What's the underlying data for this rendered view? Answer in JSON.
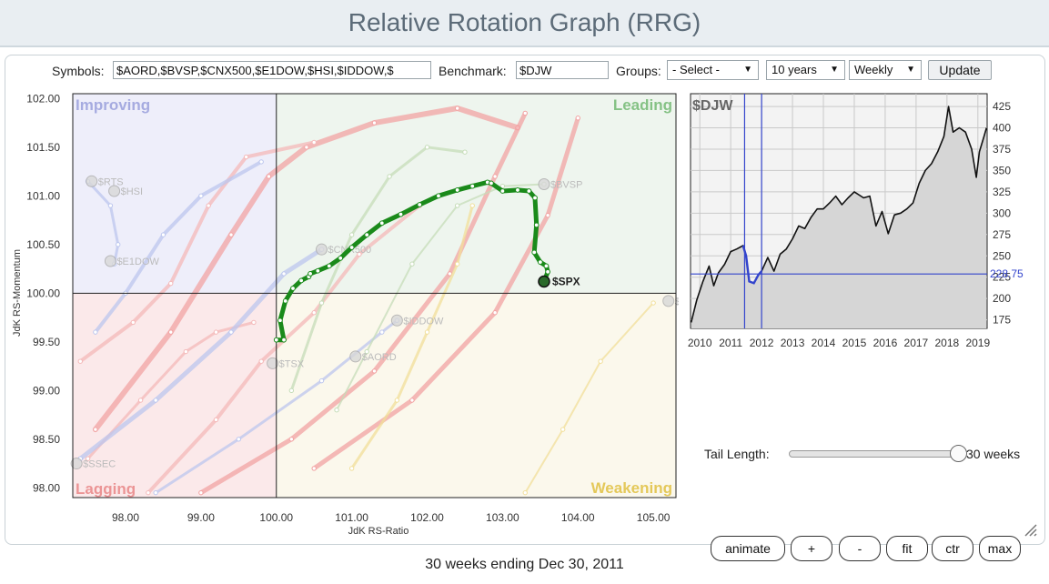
{
  "page": {
    "title": "Relative Rotation Graph (RRG)",
    "footer": "30 weeks ending Dec 30, 2011"
  },
  "controls": {
    "symbols_label": "Symbols:",
    "symbols_value": "$AORD,$BVSP,$CNX500,$E1DOW,$HSI,$IDDOW,$",
    "benchmark_label": "Benchmark:",
    "benchmark_value": "$DJW",
    "groups_label": "Groups:",
    "groups_value": "- Select -",
    "period_value": "10 years",
    "frequency_value": "Weekly",
    "update_label": "Update",
    "tail_length_label": "Tail Length:",
    "tail_length_value": "30 weeks",
    "tail_length": 30,
    "tail_length_max": 30,
    "animate_label": "animate",
    "plus_label": "+",
    "minus_label": "-",
    "fit_label": "fit",
    "ctr_label": "ctr",
    "max_label": "max"
  },
  "colors": {
    "highlight": "#1a8a1a",
    "marker": "#2a6a2a",
    "cursor": "#3344cc"
  },
  "chart_data": [
    {
      "type": "scatter",
      "xlabel": "JdK RS-Ratio",
      "ylabel": "JdK RS-Momentum",
      "xlim": [
        97.3,
        105.3
      ],
      "ylim": [
        97.9,
        102.05
      ],
      "xticks": [
        "98.00",
        "99.00",
        "100.00",
        "101.00",
        "102.00",
        "103.00",
        "104.00",
        "105.00"
      ],
      "yticks": [
        "102.00",
        "101.50",
        "101.00",
        "100.50",
        "100.00",
        "99.50",
        "99.00",
        "98.50",
        "98.00"
      ],
      "quadrants": {
        "improving": "Improving",
        "leading": "Leading",
        "weakening": "Weakening",
        "lagging": "Lagging"
      },
      "highlight": {
        "name": "$SPX",
        "points": [
          [
            100.0,
            99.52
          ],
          [
            100.1,
            99.52
          ],
          [
            100.05,
            99.72
          ],
          [
            100.12,
            99.92
          ],
          [
            100.22,
            100.05
          ],
          [
            100.33,
            100.13
          ],
          [
            100.43,
            100.17
          ],
          [
            100.45,
            100.2
          ],
          [
            100.55,
            100.23
          ],
          [
            100.7,
            100.28
          ],
          [
            100.85,
            100.36
          ],
          [
            101.0,
            100.47
          ],
          [
            101.2,
            100.6
          ],
          [
            101.4,
            100.72
          ],
          [
            101.65,
            100.81
          ],
          [
            101.9,
            100.91
          ],
          [
            102.15,
            101.0
          ],
          [
            102.4,
            101.06
          ],
          [
            102.6,
            101.1
          ],
          [
            102.8,
            101.14
          ],
          [
            102.85,
            101.13
          ],
          [
            103.0,
            101.05
          ],
          [
            103.2,
            101.06
          ],
          [
            103.35,
            101.05
          ],
          [
            103.43,
            100.98
          ],
          [
            103.45,
            100.7
          ],
          [
            103.42,
            100.42
          ],
          [
            103.5,
            100.32
          ],
          [
            103.58,
            100.28
          ],
          [
            103.6,
            100.22
          ],
          [
            103.55,
            100.12
          ]
        ]
      },
      "faded_labels": [
        {
          "name": "$RTS",
          "x": 97.55,
          "y": 101.15
        },
        {
          "name": "$HSI",
          "x": 97.85,
          "y": 101.05
        },
        {
          "name": "$E1DOW",
          "x": 97.8,
          "y": 100.33
        },
        {
          "name": "$CNX500",
          "x": 100.6,
          "y": 100.45
        },
        {
          "name": "$BVSP",
          "x": 103.55,
          "y": 101.12
        },
        {
          "name": "$IDDOW",
          "x": 101.6,
          "y": 99.72
        },
        {
          "name": "$AORD",
          "x": 101.05,
          "y": 99.35
        },
        {
          "name": "$TSX",
          "x": 99.95,
          "y": 99.28
        },
        {
          "name": "$SSEC",
          "x": 97.35,
          "y": 98.25
        },
        {
          "name": "$MXX",
          "x": 105.2,
          "y": 99.92
        }
      ]
    },
    {
      "type": "area",
      "title": "$DJW",
      "xticks": [
        "2010",
        "2011",
        "2012",
        "2013",
        "2014",
        "2015",
        "2016",
        "2017",
        "2018",
        "2019"
      ],
      "yticks": [
        "425",
        "400",
        "375",
        "350",
        "325",
        "300",
        "275",
        "250",
        "225",
        "200",
        "175"
      ],
      "ylim": [
        165,
        440
      ],
      "xlim": [
        2009.7,
        2019.3
      ],
      "current_value": "228.75",
      "current": 228.75,
      "window": [
        2011.45,
        2012.0
      ],
      "x": [
        2009.72,
        2009.9,
        2010.1,
        2010.3,
        2010.45,
        2010.6,
        2010.8,
        2011.0,
        2011.2,
        2011.4,
        2011.5,
        2011.6,
        2011.75,
        2011.9,
        2012.0,
        2012.2,
        2012.4,
        2012.6,
        2012.8,
        2013.0,
        2013.2,
        2013.4,
        2013.6,
        2013.8,
        2014.0,
        2014.2,
        2014.4,
        2014.6,
        2014.8,
        2015.0,
        2015.3,
        2015.5,
        2015.7,
        2015.9,
        2016.1,
        2016.3,
        2016.5,
        2016.7,
        2016.9,
        2017.1,
        2017.3,
        2017.5,
        2017.7,
        2017.9,
        2018.05,
        2018.2,
        2018.4,
        2018.6,
        2018.8,
        2018.95,
        2019.05,
        2019.2,
        2019.28
      ],
      "values": [
        172,
        198,
        220,
        238,
        215,
        230,
        240,
        255,
        258,
        262,
        250,
        220,
        218,
        228,
        232,
        248,
        232,
        252,
        258,
        270,
        285,
        282,
        295,
        305,
        305,
        312,
        320,
        310,
        318,
        325,
        318,
        320,
        285,
        302,
        276,
        298,
        300,
        305,
        312,
        335,
        350,
        358,
        372,
        390,
        425,
        395,
        400,
        395,
        375,
        342,
        372,
        390,
        400
      ]
    }
  ]
}
